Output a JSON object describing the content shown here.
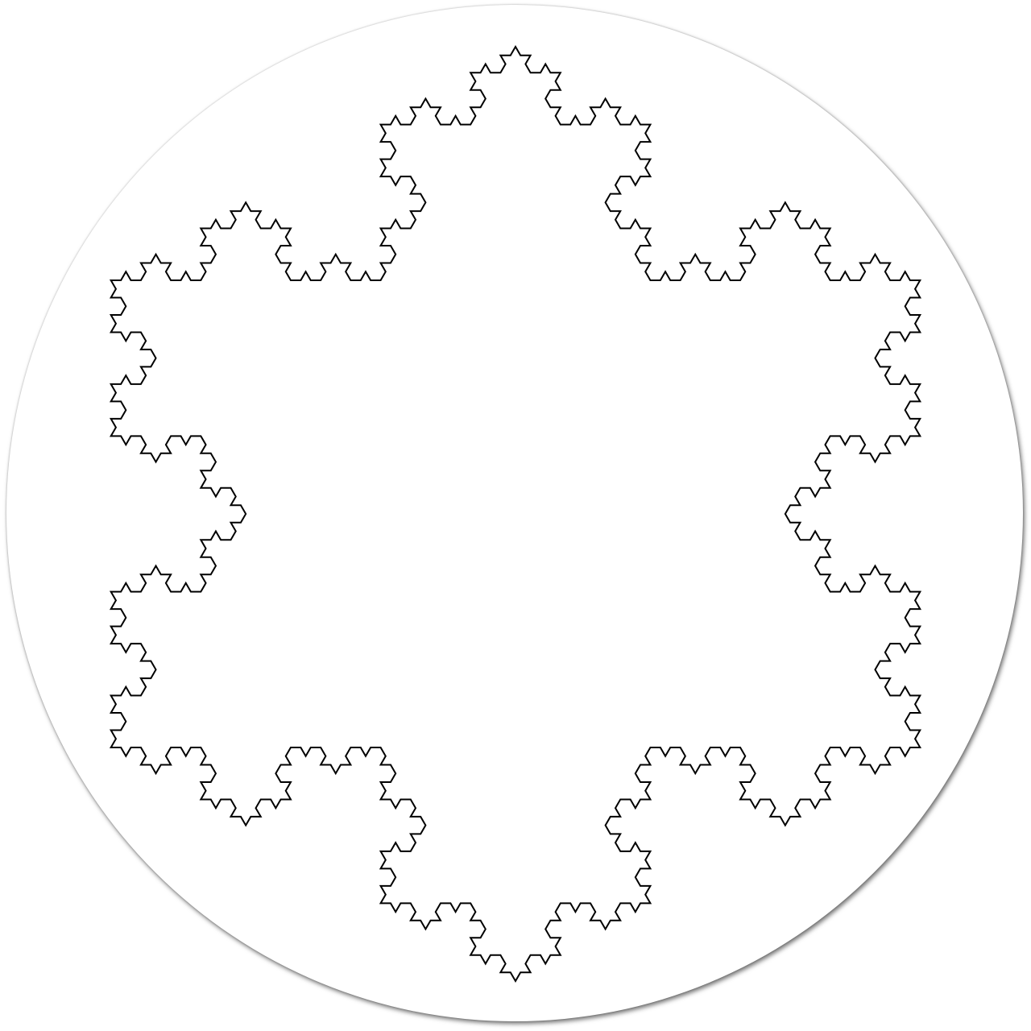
{
  "figure": {
    "subject": "Koch snowflake",
    "iteration_depth": 4,
    "outline_color": "#000000",
    "fill_color": "#ffffff",
    "background_disc_color": "#ffffff",
    "disc_shadow": true
  }
}
